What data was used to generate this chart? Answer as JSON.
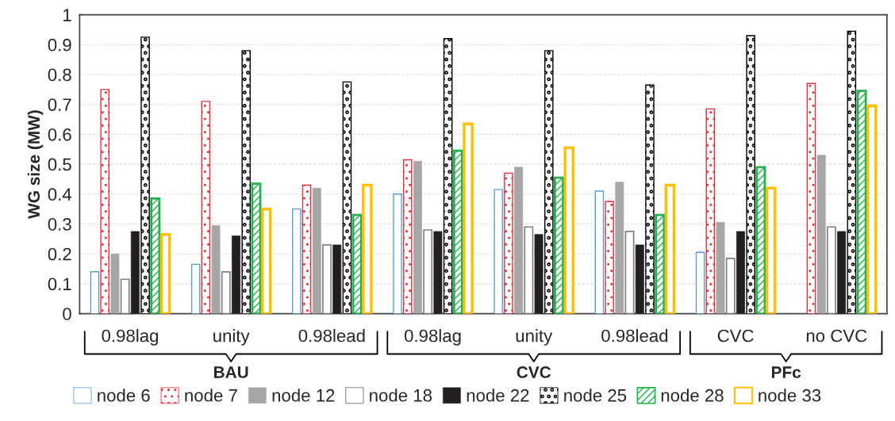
{
  "chart_data": {
    "type": "bar",
    "ylabel": "WG size (MW)",
    "categories": [
      "0.98lag",
      "unity",
      "0.98lead",
      "0.98lag",
      "unity",
      "0.98lead",
      "CVC",
      "no CVC"
    ],
    "series": [
      {
        "name": "node 6",
        "color": "#5b9bd5",
        "values": [
          0.14,
          0.165,
          0.35,
          0.4,
          0.415,
          0.41,
          0.205,
          null
        ]
      },
      {
        "name": "node 7",
        "color": "#e0303a",
        "values": [
          0.75,
          0.71,
          0.43,
          0.515,
          0.47,
          0.375,
          0.685,
          0.77
        ]
      },
      {
        "name": "node 12",
        "color": "#a6a6a6",
        "values": [
          0.2,
          0.295,
          0.42,
          0.51,
          0.49,
          0.44,
          0.305,
          0.53
        ]
      },
      {
        "name": "node 18",
        "color": "#ffffff",
        "values": [
          0.115,
          0.14,
          0.23,
          0.28,
          0.29,
          0.275,
          0.185,
          0.29
        ]
      },
      {
        "name": "node 22",
        "color": "#231f20",
        "values": [
          0.275,
          0.26,
          0.23,
          0.275,
          0.265,
          0.23,
          0.275,
          0.275
        ]
      },
      {
        "name": "node 25",
        "color": "#000000",
        "values": [
          0.925,
          0.88,
          0.775,
          0.92,
          0.88,
          0.765,
          0.93,
          0.945
        ]
      },
      {
        "name": "node 28",
        "color": "#22b14c",
        "values": [
          0.385,
          0.435,
          0.33,
          0.545,
          0.455,
          0.33,
          0.49,
          0.745
        ]
      },
      {
        "name": "node 33",
        "color": "#ffc000",
        "values": [
          0.265,
          0.35,
          0.43,
          0.635,
          0.555,
          0.43,
          0.42,
          0.695
        ]
      }
    ],
    "ylim": [
      0,
      1
    ],
    "yticks": [
      0,
      0.1,
      0.2,
      0.3,
      0.4,
      0.5,
      0.6,
      0.7,
      0.8,
      0.9,
      1
    ],
    "grid": "y",
    "legend": "bottom",
    "annotations": [
      "BAU",
      "CVC",
      "PFc"
    ]
  }
}
